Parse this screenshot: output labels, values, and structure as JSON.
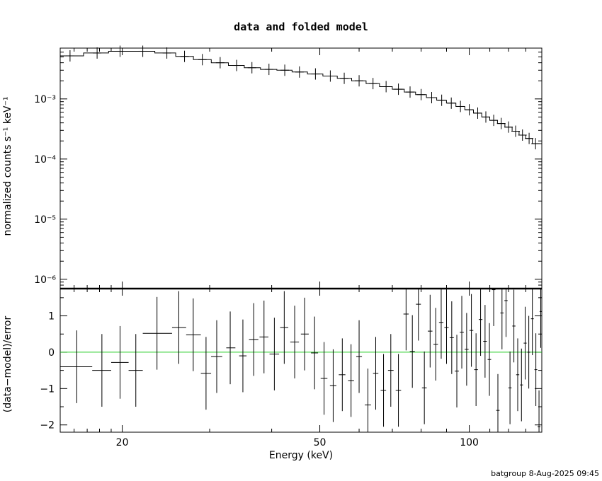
{
  "chart_data": [
    {
      "type": "scatter",
      "panel": "top",
      "title": "data and folded model",
      "xlabel": "",
      "ylabel": "normalized counts s⁻¹ keV⁻¹",
      "xscale": "log",
      "yscale": "log",
      "xlim": [
        15,
        140
      ],
      "ylim": [
        7e-07,
        0.007
      ],
      "ytick_labels": [
        "10⁻³",
        "10⁻⁴",
        "10⁻⁵",
        "10⁻⁶"
      ],
      "ytick_values": [
        0.001,
        0.0001,
        1e-05,
        1e-06
      ],
      "series": [
        {
          "style": "stepped model with error crosses",
          "color": "#000000",
          "x": [
            15.7,
            17.8,
            19.8,
            22.0,
            24.6,
            26.7,
            29.0,
            31.5,
            34.0,
            36.5,
            39.5,
            42.5,
            45.5,
            49.0,
            52.5,
            56.0,
            60.0,
            64.0,
            68.0,
            72.0,
            76.0,
            80.0,
            84.0,
            88.0,
            92.0,
            96.0,
            100.0,
            104.0,
            108.0,
            112.0,
            116.0,
            120.0,
            124.0,
            128.0,
            132.0,
            136.0
          ],
          "y": [
            0.0052,
            0.0058,
            0.0062,
            0.0062,
            0.0058,
            0.0051,
            0.0045,
            0.004,
            0.0036,
            0.0033,
            0.0031,
            0.003,
            0.0028,
            0.0026,
            0.0024,
            0.0022,
            0.002,
            0.0018,
            0.0016,
            0.00145,
            0.0013,
            0.00118,
            0.00105,
            0.00095,
            0.00085,
            0.00075,
            0.00066,
            0.00058,
            0.0005,
            0.00044,
            0.00039,
            0.00034,
            0.00029,
            0.00025,
            0.00022,
            0.00018
          ]
        }
      ]
    },
    {
      "type": "scatter",
      "panel": "bottom",
      "title": "",
      "xlabel": "Energy (keV)",
      "ylabel": "(data−model)/error",
      "xscale": "log",
      "xlim": [
        15,
        140
      ],
      "ylim": [
        -2.2,
        1.75
      ],
      "xtick_labels": [
        "20",
        "50",
        "100"
      ],
      "xtick_values": [
        20,
        50,
        100
      ],
      "ytick_labels": [
        "1",
        "0",
        "−1",
        "−2"
      ],
      "ytick_values": [
        1,
        0,
        -1,
        -2
      ],
      "reference_line": {
        "y": 0,
        "color": "#22cc22"
      },
      "series": [
        {
          "style": "error crosses",
          "color": "#000000",
          "points": [
            {
              "x": 16.2,
              "y": -0.4,
              "xerr": [
                15.0,
                17.4
              ],
              "yerr": 1.0
            },
            {
              "x": 18.2,
              "y": -0.5,
              "xerr": [
                17.4,
                19.0
              ],
              "yerr": 1.0
            },
            {
              "x": 19.8,
              "y": -0.28,
              "xerr": [
                19.0,
                20.6
              ],
              "yerr": 1.0
            },
            {
              "x": 21.3,
              "y": -0.5,
              "xerr": [
                20.6,
                22.0
              ],
              "yerr": 1.0
            },
            {
              "x": 23.5,
              "y": 0.52,
              "xerr": [
                22.0,
                25.2
              ],
              "yerr": 1.0
            },
            {
              "x": 26.0,
              "y": 0.68,
              "xerr": [
                25.2,
                26.9
              ],
              "yerr": 1.0
            },
            {
              "x": 27.8,
              "y": 0.48,
              "xerr": [
                26.9,
                28.8
              ],
              "yerr": 1.0
            },
            {
              "x": 29.5,
              "y": -0.58,
              "xerr": [
                28.8,
                30.2
              ],
              "yerr": 1.0
            },
            {
              "x": 31.0,
              "y": -0.12,
              "xerr": [
                30.2,
                31.8
              ],
              "yerr": 1.0
            },
            {
              "x": 33.0,
              "y": 0.12,
              "xerr": [
                32.4,
                33.8
              ],
              "yerr": 1.0
            },
            {
              "x": 35.0,
              "y": -0.1,
              "xerr": [
                34.4,
                35.6
              ],
              "yerr": 1.0
            },
            {
              "x": 36.8,
              "y": 0.35,
              "xerr": [
                36.0,
                37.6
              ],
              "yerr": 1.0
            },
            {
              "x": 38.6,
              "y": 0.42,
              "xerr": [
                37.8,
                39.4
              ],
              "yerr": 1.0
            },
            {
              "x": 40.5,
              "y": -0.05,
              "xerr": [
                39.6,
                41.4
              ],
              "yerr": 1.0
            },
            {
              "x": 42.4,
              "y": 0.68,
              "xerr": [
                41.6,
                43.2
              ],
              "yerr": 1.0
            },
            {
              "x": 44.5,
              "y": 0.28,
              "xerr": [
                43.6,
                45.4
              ],
              "yerr": 1.0
            },
            {
              "x": 46.6,
              "y": 0.5,
              "xerr": [
                45.8,
                47.5
              ],
              "yerr": 1.0
            },
            {
              "x": 48.8,
              "y": -0.02,
              "xerr": [
                48.0,
                49.6
              ],
              "yerr": 1.0
            },
            {
              "x": 51.0,
              "y": -0.72,
              "xerr": [
                50.2,
                51.8
              ],
              "yerr": 1.0
            },
            {
              "x": 53.2,
              "y": -0.92,
              "xerr": [
                52.4,
                54.0
              ],
              "yerr": 1.0
            },
            {
              "x": 55.5,
              "y": -0.62,
              "xerr": [
                54.6,
                56.3
              ],
              "yerr": 1.0
            },
            {
              "x": 57.8,
              "y": -0.78,
              "xerr": [
                57.0,
                58.6
              ],
              "yerr": 1.0
            },
            {
              "x": 60.0,
              "y": -0.12,
              "xerr": [
                59.2,
                60.8
              ],
              "yerr": 1.0
            },
            {
              "x": 62.5,
              "y": -1.45,
              "xerr": [
                61.6,
                63.4
              ],
              "yerr": 1.0
            },
            {
              "x": 64.8,
              "y": -0.58,
              "xerr": [
                64.0,
                65.6
              ],
              "yerr": 1.0
            },
            {
              "x": 67.2,
              "y": -1.05,
              "xerr": [
                66.3,
                68.0
              ],
              "yerr": 1.0
            },
            {
              "x": 69.5,
              "y": -0.5,
              "xerr": [
                68.6,
                70.4
              ],
              "yerr": 1.0
            },
            {
              "x": 72.0,
              "y": -1.05,
              "xerr": [
                71.1,
                72.9
              ],
              "yerr": 1.0
            },
            {
              "x": 74.6,
              "y": 1.05,
              "xerr": [
                73.7,
                75.5
              ],
              "yerr": 1.0
            },
            {
              "x": 76.8,
              "y": 0.02,
              "xerr": [
                75.9,
                77.7
              ],
              "yerr": 1.0
            },
            {
              "x": 79.0,
              "y": 1.32,
              "xerr": [
                78.1,
                79.9
              ],
              "yerr": 1.0
            },
            {
              "x": 81.2,
              "y": -0.98,
              "xerr": [
                80.3,
                82.1
              ],
              "yerr": 1.0
            },
            {
              "x": 83.4,
              "y": 0.58,
              "xerr": [
                82.5,
                84.3
              ],
              "yerr": 1.0
            },
            {
              "x": 85.6,
              "y": 0.22,
              "xerr": [
                84.7,
                86.5
              ],
              "yerr": 1.0
            },
            {
              "x": 87.8,
              "y": 0.82,
              "xerr": [
                86.9,
                88.7
              ],
              "yerr": 1.0
            },
            {
              "x": 90.0,
              "y": 0.68,
              "xerr": [
                89.1,
                90.9
              ],
              "yerr": 1.0
            },
            {
              "x": 92.2,
              "y": 0.4,
              "xerr": [
                91.3,
                93.1
              ],
              "yerr": 1.0
            },
            {
              "x": 94.4,
              "y": -0.52,
              "xerr": [
                93.5,
                95.3
              ],
              "yerr": 1.0
            },
            {
              "x": 96.6,
              "y": 0.55,
              "xerr": [
                95.7,
                97.5
              ],
              "yerr": 1.0
            },
            {
              "x": 98.8,
              "y": 0.08,
              "xerr": [
                97.9,
                99.7
              ],
              "yerr": 1.0
            },
            {
              "x": 101.0,
              "y": 0.6,
              "xerr": [
                100.1,
                101.9
              ],
              "yerr": 1.0
            },
            {
              "x": 103.2,
              "y": -0.48,
              "xerr": [
                102.3,
                104.1
              ],
              "yerr": 1.0
            },
            {
              "x": 105.4,
              "y": 0.9,
              "xerr": [
                104.5,
                106.3
              ],
              "yerr": 1.0
            },
            {
              "x": 107.6,
              "y": 0.3,
              "xerr": [
                106.7,
                108.5
              ],
              "yerr": 1.0
            },
            {
              "x": 109.8,
              "y": -0.2,
              "xerr": [
                108.9,
                110.7
              ],
              "yerr": 1.0
            },
            {
              "x": 112.0,
              "y": 1.72,
              "xerr": [
                111.1,
                112.9
              ],
              "yerr": 1.0
            },
            {
              "x": 114.2,
              "y": -1.6,
              "xerr": [
                113.3,
                115.1
              ],
              "yerr": 1.0
            },
            {
              "x": 116.4,
              "y": 1.08,
              "xerr": [
                115.5,
                117.3
              ],
              "yerr": 1.0
            },
            {
              "x": 118.6,
              "y": 1.42,
              "xerr": [
                117.7,
                119.5
              ],
              "yerr": 1.0
            },
            {
              "x": 120.8,
              "y": -0.98,
              "xerr": [
                119.9,
                121.7
              ],
              "yerr": 1.0
            },
            {
              "x": 123.0,
              "y": 0.72,
              "xerr": [
                122.1,
                123.9
              ],
              "yerr": 1.0
            },
            {
              "x": 125.2,
              "y": -0.62,
              "xerr": [
                124.3,
                126.1
              ],
              "yerr": 1.0
            },
            {
              "x": 127.4,
              "y": -0.9,
              "xerr": [
                126.5,
                128.3
              ],
              "yerr": 1.0
            },
            {
              "x": 129.6,
              "y": 0.25,
              "xerr": [
                128.7,
                130.5
              ],
              "yerr": 1.0
            },
            {
              "x": 131.8,
              "y": 0.0,
              "xerr": [
                130.9,
                132.7
              ],
              "yerr": 1.0
            },
            {
              "x": 134.0,
              "y": 0.92,
              "xerr": [
                133.1,
                134.9
              ],
              "yerr": 1.0
            },
            {
              "x": 136.2,
              "y": -0.48,
              "xerr": [
                135.3,
                137.1
              ],
              "yerr": 1.0
            },
            {
              "x": 138.2,
              "y": -2.05,
              "xerr": [
                137.3,
                139.1
              ],
              "yerr": 1.0
            },
            {
              "x": 139.3,
              "y": 1.12,
              "xerr": [
                138.6,
                140.0
              ],
              "yerr": 1.0
            }
          ]
        }
      ]
    }
  ],
  "footer": {
    "text": "batgroup  8-Aug-2025 09:45"
  }
}
